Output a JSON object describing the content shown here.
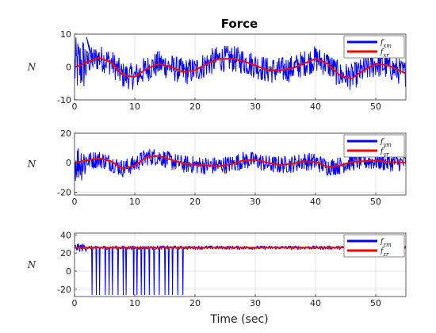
{
  "chart_data": [
    {
      "type": "line",
      "title": "Force",
      "xlabel": "",
      "ylabel": "N",
      "xlim": [
        0,
        55
      ],
      "ylim": [
        -10,
        10
      ],
      "xticks": [
        0,
        10,
        20,
        30,
        40,
        50
      ],
      "yticks": [
        -10,
        0,
        10
      ],
      "grid": true,
      "legend": "top-right",
      "series": [
        {
          "name": "f_xm",
          "color": "#0000ff",
          "noise_amplitude": 4,
          "x": [
            0,
            1,
            2,
            4,
            6,
            8,
            10,
            12,
            14,
            16,
            18,
            20,
            22,
            24,
            26,
            28,
            30,
            32,
            34,
            36,
            38,
            40,
            42,
            44,
            46,
            48,
            50,
            52,
            55
          ],
          "values": [
            0,
            0.5,
            1.5,
            2.8,
            1.5,
            -2.5,
            -3,
            -0.5,
            1,
            0,
            -1.5,
            -1,
            1,
            2.5,
            2.5,
            1.8,
            0.5,
            -1,
            -1,
            -0.5,
            1,
            2.5,
            1,
            -2.5,
            -3,
            -1,
            1,
            0,
            -2
          ]
        },
        {
          "name": "f_xr",
          "color": "#ff0000",
          "x": [
            0,
            1,
            2,
            4,
            6,
            8,
            10,
            12,
            14,
            16,
            18,
            20,
            22,
            24,
            26,
            28,
            30,
            32,
            34,
            36,
            38,
            40,
            42,
            44,
            46,
            48,
            50,
            52,
            55
          ],
          "values": [
            0,
            0.5,
            1.5,
            2.8,
            1.5,
            -2.5,
            -3,
            -0.5,
            1,
            0,
            -1.5,
            -1,
            1,
            2.5,
            2.5,
            1.8,
            0.5,
            -1,
            -1,
            -0.5,
            1,
            2.5,
            1,
            -2.5,
            -3.5,
            -1,
            1,
            0.5,
            -2
          ]
        }
      ]
    },
    {
      "type": "line",
      "title": "",
      "xlabel": "",
      "ylabel": "N",
      "xlim": [
        0,
        55
      ],
      "ylim": [
        -22,
        20
      ],
      "xticks": [
        0,
        10,
        20,
        30,
        40,
        50
      ],
      "yticks": [
        -20,
        0,
        20
      ],
      "grid": true,
      "legend": "top-right",
      "series": [
        {
          "name": "f_ym",
          "color": "#0000ff",
          "noise_amplitude": 6,
          "x": [
            0,
            2,
            4,
            6,
            8,
            10,
            12,
            14,
            16,
            18,
            20,
            22,
            24,
            26,
            28,
            30,
            32,
            34,
            36,
            38,
            40,
            42,
            44,
            46,
            48,
            50,
            52,
            55
          ],
          "values": [
            0,
            1,
            2.5,
            0,
            -4,
            -1,
            4,
            4,
            1,
            -1,
            -1.5,
            -2,
            -2,
            -1,
            1.5,
            1.5,
            -1,
            -1.5,
            -1,
            1,
            0.5,
            -3,
            -2,
            0.5,
            1,
            1,
            0,
            0
          ]
        },
        {
          "name": "f_yr",
          "color": "#ff0000",
          "x": [
            0,
            2,
            4,
            6,
            8,
            10,
            12,
            14,
            16,
            18,
            20,
            22,
            24,
            26,
            28,
            30,
            32,
            34,
            36,
            38,
            40,
            42,
            44,
            46,
            48,
            50,
            52,
            55
          ],
          "values": [
            0,
            1.5,
            3,
            1,
            -4,
            -2,
            4,
            4.5,
            2,
            -0.5,
            -1.5,
            -2,
            -2.5,
            -1,
            1.5,
            2,
            0,
            -1.5,
            -1,
            1,
            0.5,
            -3,
            -2,
            0.5,
            1,
            1.5,
            0.5,
            0
          ]
        }
      ]
    },
    {
      "type": "line",
      "title": "",
      "xlabel": "Time (sec)",
      "ylabel": "N",
      "xlim": [
        0,
        55
      ],
      "ylim": [
        -28,
        42
      ],
      "xticks": [
        0,
        10,
        20,
        30,
        40,
        50
      ],
      "yticks": [
        -20,
        0,
        20,
        40
      ],
      "grid": true,
      "legend": "top-right",
      "series": [
        {
          "name": "f_zm",
          "color": "#0000ff",
          "noise_amplitude": 2,
          "spike_low": -26,
          "spike_times": [
            2.9,
            3.6,
            4.2,
            5.1,
            5.7,
            6.3,
            7.2,
            8.1,
            8.6,
            9.8,
            10.4,
            11.1,
            11.6,
            12.4,
            13.2,
            14.1,
            15.0,
            15.6,
            16.3,
            17.1,
            18.0
          ],
          "x": [
            0,
            55
          ],
          "values": [
            26,
            26
          ]
        },
        {
          "name": "f_zr",
          "color": "#ff0000",
          "x": [
            0,
            55
          ],
          "values": [
            26,
            26
          ]
        }
      ]
    }
  ]
}
